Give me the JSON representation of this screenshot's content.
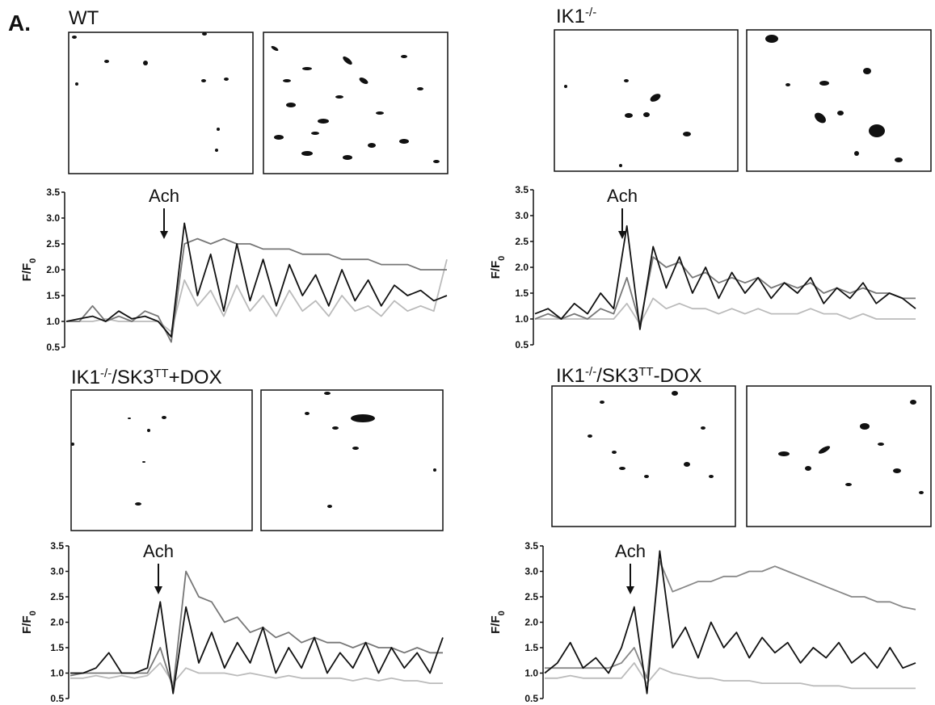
{
  "panel_label": "A.",
  "chart_data": [
    {
      "type": "line",
      "title": [
        "WT"
      ],
      "y_label": [
        "F/F",
        "0"
      ],
      "annotation": "Ach",
      "ylim": [
        0.5,
        3.5
      ],
      "yticks": [
        0.5,
        {
          "value": 1,
          "label": "1.0"
        },
        1.5,
        {
          "value": 2,
          "label": "2.0"
        },
        2.5,
        {
          "value": 3,
          "label": "3.0"
        },
        3.5
      ],
      "series": [
        {
          "color": "#bbbbbb",
          "values": [
            1.0,
            1.0,
            1.0,
            1.05,
            1.0,
            1.0,
            1.0,
            1.0,
            0.8,
            1.8,
            1.3,
            1.6,
            1.1,
            1.7,
            1.2,
            1.5,
            1.1,
            1.6,
            1.2,
            1.4,
            1.1,
            1.5,
            1.2,
            1.3,
            1.1,
            1.4,
            1.2,
            1.3,
            1.2,
            2.2
          ]
        },
        {
          "color": "#777777",
          "values": [
            1.0,
            1.0,
            1.3,
            1.0,
            1.1,
            1.0,
            1.2,
            1.1,
            0.6,
            2.5,
            2.6,
            2.5,
            2.6,
            2.5,
            2.5,
            2.4,
            2.4,
            2.4,
            2.3,
            2.3,
            2.3,
            2.2,
            2.2,
            2.2,
            2.1,
            2.1,
            2.1,
            2.0,
            2.0,
            2.0
          ]
        },
        {
          "color": "#111111",
          "values": [
            1.0,
            1.05,
            1.1,
            1.0,
            1.2,
            1.05,
            1.1,
            1.0,
            0.7,
            2.9,
            1.5,
            2.3,
            1.2,
            2.5,
            1.4,
            2.2,
            1.3,
            2.1,
            1.5,
            1.9,
            1.3,
            2.0,
            1.4,
            1.8,
            1.3,
            1.7,
            1.5,
            1.6,
            1.4,
            1.5
          ]
        }
      ]
    },
    {
      "type": "line",
      "title": [
        "IK1",
        "-/-"
      ],
      "y_label": [
        "F/F",
        "0"
      ],
      "annotation": "Ach",
      "ylim": [
        0.5,
        3.5
      ],
      "yticks": [
        0.5,
        {
          "value": 1,
          "label": "1.0"
        },
        1.5,
        {
          "value": 2,
          "label": "2.0"
        },
        2.5,
        {
          "value": 3,
          "label": "3.0"
        },
        3.5
      ],
      "series": [
        {
          "color": "#bbbbbb",
          "values": [
            1.0,
            1.0,
            1.0,
            1.0,
            1.0,
            1.0,
            1.0,
            1.3,
            0.9,
            1.4,
            1.2,
            1.3,
            1.2,
            1.2,
            1.1,
            1.2,
            1.1,
            1.2,
            1.1,
            1.1,
            1.1,
            1.2,
            1.1,
            1.1,
            1.0,
            1.1,
            1.0,
            1.0,
            1.0,
            1.0
          ]
        },
        {
          "color": "#777777",
          "values": [
            1.0,
            1.1,
            1.0,
            1.1,
            1.0,
            1.2,
            1.1,
            1.8,
            0.9,
            2.2,
            2.0,
            2.1,
            1.8,
            1.9,
            1.7,
            1.8,
            1.7,
            1.8,
            1.6,
            1.7,
            1.6,
            1.7,
            1.5,
            1.6,
            1.5,
            1.6,
            1.5,
            1.5,
            1.4,
            1.4
          ]
        },
        {
          "color": "#111111",
          "values": [
            1.1,
            1.2,
            1.0,
            1.3,
            1.1,
            1.5,
            1.2,
            2.8,
            0.8,
            2.4,
            1.6,
            2.2,
            1.5,
            2.0,
            1.4,
            1.9,
            1.5,
            1.8,
            1.4,
            1.7,
            1.5,
            1.8,
            1.3,
            1.6,
            1.4,
            1.7,
            1.3,
            1.5,
            1.4,
            1.2
          ]
        }
      ]
    },
    {
      "type": "line",
      "title": [
        "IK1",
        "-/-",
        "/SK3",
        "TT",
        "+DOX"
      ],
      "y_label": [
        "F/F",
        "0"
      ],
      "annotation": "Ach",
      "ylim": [
        0.5,
        3.5
      ],
      "yticks": [
        0.5,
        {
          "value": 1,
          "label": "1.0"
        },
        1.5,
        {
          "value": 2,
          "label": "2.0"
        },
        2.5,
        {
          "value": 3,
          "label": "3.0"
        },
        3.5
      ],
      "series": [
        {
          "color": "#bbbbbb",
          "values": [
            0.9,
            0.9,
            0.95,
            0.9,
            0.95,
            0.9,
            0.95,
            1.2,
            0.8,
            1.1,
            1.0,
            1.0,
            1.0,
            0.95,
            1.0,
            0.95,
            0.9,
            0.95,
            0.9,
            0.9,
            0.9,
            0.9,
            0.85,
            0.9,
            0.85,
            0.9,
            0.85,
            0.85,
            0.8,
            0.8
          ]
        },
        {
          "color": "#777777",
          "values": [
            0.95,
            1.0,
            1.0,
            1.0,
            1.0,
            1.0,
            1.0,
            1.5,
            0.7,
            3.0,
            2.5,
            2.4,
            2.0,
            2.1,
            1.8,
            1.9,
            1.7,
            1.8,
            1.6,
            1.7,
            1.6,
            1.6,
            1.5,
            1.6,
            1.5,
            1.5,
            1.4,
            1.5,
            1.4,
            1.4
          ]
        },
        {
          "color": "#111111",
          "values": [
            1.0,
            1.0,
            1.1,
            1.4,
            1.0,
            1.0,
            1.1,
            2.4,
            0.6,
            2.3,
            1.2,
            1.8,
            1.1,
            1.6,
            1.2,
            1.9,
            1.0,
            1.5,
            1.1,
            1.7,
            1.0,
            1.4,
            1.1,
            1.6,
            1.0,
            1.5,
            1.1,
            1.4,
            1.0,
            1.7
          ]
        }
      ]
    },
    {
      "type": "line",
      "title": [
        "IK1",
        "-/-",
        "/SK3",
        "TT",
        "-DOX"
      ],
      "y_label": [
        "F/F",
        "0"
      ],
      "annotation": "Ach",
      "ylim": [
        0.5,
        3.5
      ],
      "yticks": [
        0.5,
        {
          "value": 1,
          "label": "1.0"
        },
        1.5,
        {
          "value": 2,
          "label": "2.0"
        },
        2.5,
        {
          "value": 3,
          "label": "3.0"
        },
        3.5
      ],
      "series": [
        {
          "color": "#bbbbbb",
          "values": [
            0.9,
            0.9,
            0.95,
            0.9,
            0.9,
            0.9,
            0.9,
            1.2,
            0.8,
            1.1,
            1.0,
            0.95,
            0.9,
            0.9,
            0.85,
            0.85,
            0.85,
            0.8,
            0.8,
            0.8,
            0.8,
            0.75,
            0.75,
            0.75,
            0.7,
            0.7,
            0.7,
            0.7,
            0.7,
            0.7
          ]
        },
        {
          "color": "#888888",
          "values": [
            1.1,
            1.1,
            1.1,
            1.1,
            1.1,
            1.1,
            1.2,
            1.5,
            0.9,
            3.2,
            2.6,
            2.7,
            2.8,
            2.8,
            2.9,
            2.9,
            3.0,
            3.0,
            3.1,
            3.0,
            2.9,
            2.8,
            2.7,
            2.6,
            2.5,
            2.5,
            2.4,
            2.4,
            2.3,
            2.25
          ]
        },
        {
          "color": "#111111",
          "values": [
            1.0,
            1.2,
            1.6,
            1.1,
            1.3,
            1.0,
            1.5,
            2.3,
            0.6,
            3.4,
            1.5,
            1.9,
            1.3,
            2.0,
            1.5,
            1.8,
            1.3,
            1.7,
            1.4,
            1.6,
            1.2,
            1.5,
            1.3,
            1.6,
            1.2,
            1.4,
            1.1,
            1.5,
            1.1,
            1.2
          ]
        }
      ]
    }
  ]
}
